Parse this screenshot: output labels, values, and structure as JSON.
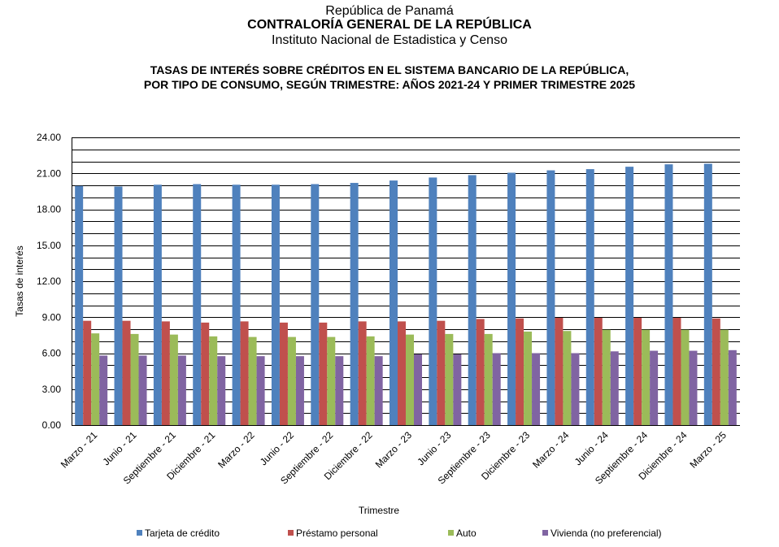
{
  "header": {
    "line1": "República de Panamá",
    "line2": "CONTRALORÍA GENERAL DE LA REPÚBLICA",
    "line3": "Instituto  Nacional de Estadistica y Censo"
  },
  "chart_data": {
    "type": "bar",
    "title": "TASAS  DE INTERÉS SOBRE CRÉDITOS EN EL SISTEMA BANCARIO DE LA REPÚBLICA,",
    "subtitle": "POR TIPO DE CONSUMO, SEGÚN TRIMESTRE: AÑOS 2021-24 Y PRIMER TRIMESTRE 2025",
    "xlabel": "Trimestre",
    "ylabel": "Tasas de interés",
    "ylim": [
      0,
      24
    ],
    "yticks": [
      "0.00",
      "3.00",
      "6.00",
      "9.00",
      "12.00",
      "15.00",
      "18.00",
      "21.00",
      "24.00"
    ],
    "categories": [
      "Marzo - 21",
      "Junio - 21",
      "Septiembre - 21",
      "Diciembre - 21",
      "Marzo - 22",
      "Junio - 22",
      "Septiembre - 22",
      "Diciembre - 22",
      "Marzo - 23",
      "Junio - 23",
      "Septiembre - 23",
      "Diciembre - 23",
      "Marzo - 24",
      "Junio - 24",
      "Septiembre - 24",
      "Diciembre - 24",
      "Marzo - 25"
    ],
    "series": [
      {
        "name": "Tarjeta de crédito",
        "color": "#4F81BD",
        "values": [
          19.95,
          19.9,
          20.05,
          20.1,
          20.05,
          20.05,
          20.1,
          20.2,
          20.4,
          20.65,
          20.85,
          21.05,
          21.25,
          21.35,
          21.55,
          21.75,
          21.8
        ]
      },
      {
        "name": "Préstamo personal",
        "color": "#C0504D",
        "values": [
          8.7,
          8.7,
          8.65,
          8.55,
          8.65,
          8.55,
          8.55,
          8.65,
          8.65,
          8.7,
          8.85,
          8.9,
          8.95,
          8.95,
          8.95,
          8.95,
          8.9
        ]
      },
      {
        "name": "Auto",
        "color": "#9BBB59",
        "values": [
          7.65,
          7.6,
          7.55,
          7.4,
          7.35,
          7.35,
          7.35,
          7.4,
          7.55,
          7.6,
          7.6,
          7.8,
          7.85,
          7.95,
          7.95,
          7.95,
          7.95
        ]
      },
      {
        "name": "Vivienda (no preferencial)",
        "color": "#8064A2",
        "values": [
          5.8,
          5.8,
          5.8,
          5.75,
          5.75,
          5.75,
          5.75,
          5.75,
          5.9,
          5.9,
          6.0,
          6.0,
          6.0,
          6.15,
          6.2,
          6.2,
          6.25
        ]
      }
    ],
    "legend_position": "bottom"
  }
}
